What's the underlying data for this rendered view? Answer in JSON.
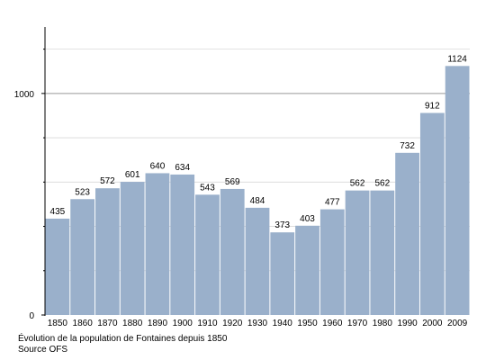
{
  "chart_data": {
    "type": "bar",
    "title": "",
    "xlabel": "",
    "ylabel": "",
    "categories": [
      "1850",
      "1860",
      "1870",
      "1880",
      "1890",
      "1900",
      "1910",
      "1920",
      "1930",
      "1940",
      "1950",
      "1960",
      "1970",
      "1980",
      "1990",
      "2000",
      "2009"
    ],
    "values": [
      435,
      523,
      572,
      601,
      640,
      634,
      543,
      569,
      484,
      373,
      403,
      477,
      562,
      562,
      732,
      912,
      1124
    ],
    "data_labels": [
      "435",
      "523",
      "572",
      "601",
      "640",
      "634",
      "543",
      "569",
      "484",
      "373",
      "403",
      "477",
      "562",
      "562",
      "732",
      "912",
      "1124"
    ],
    "ylim": [
      0,
      1300
    ],
    "yticks": [
      0,
      1000
    ],
    "grid": true,
    "bar_color": "#9ab0cb"
  },
  "caption": {
    "line1": "Évolution de la population de Fontaines depuis 1850",
    "line2": "Source OFS"
  }
}
